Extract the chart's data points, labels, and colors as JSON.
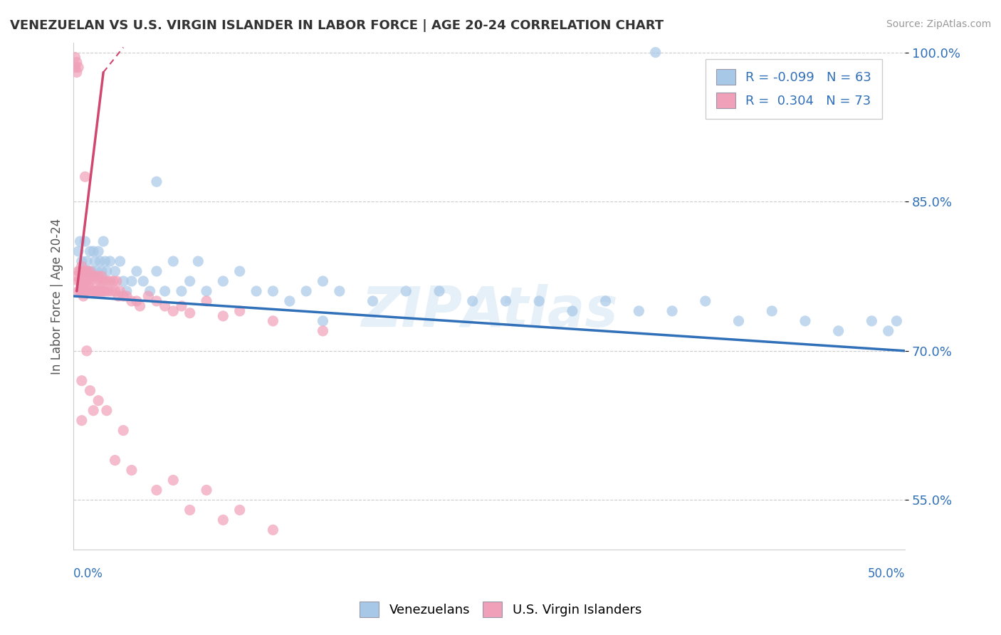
{
  "title": "VENEZUELAN VS U.S. VIRGIN ISLANDER IN LABOR FORCE | AGE 20-24 CORRELATION CHART",
  "source": "Source: ZipAtlas.com",
  "ylabel": "In Labor Force | Age 20-24",
  "xmin": 0.0,
  "xmax": 0.5,
  "ymin": 0.5,
  "ymax": 1.01,
  "yticks": [
    0.55,
    0.7,
    0.85,
    1.0
  ],
  "ytick_labels": [
    "55.0%",
    "70.0%",
    "85.0%",
    "100.0%"
  ],
  "r_blue": -0.099,
  "n_blue": 63,
  "r_pink": 0.304,
  "n_pink": 73,
  "blue_color": "#a8c8e8",
  "pink_color": "#f0a0b8",
  "blue_line_color": "#3070b8",
  "pink_line_color": "#d04870",
  "watermark": "ZIPAtlas",
  "blue_scatter_x": [
    0.003,
    0.004,
    0.005,
    0.006,
    0.007,
    0.008,
    0.009,
    0.01,
    0.011,
    0.012,
    0.013,
    0.014,
    0.015,
    0.016,
    0.017,
    0.018,
    0.019,
    0.02,
    0.022,
    0.025,
    0.028,
    0.03,
    0.032,
    0.035,
    0.038,
    0.042,
    0.046,
    0.05,
    0.055,
    0.06,
    0.065,
    0.07,
    0.075,
    0.08,
    0.09,
    0.1,
    0.11,
    0.12,
    0.13,
    0.14,
    0.15,
    0.16,
    0.18,
    0.2,
    0.22,
    0.24,
    0.26,
    0.28,
    0.3,
    0.32,
    0.34,
    0.36,
    0.38,
    0.4,
    0.42,
    0.44,
    0.46,
    0.48,
    0.49,
    0.495,
    0.05,
    0.15,
    0.35
  ],
  "blue_scatter_y": [
    0.8,
    0.81,
    0.79,
    0.78,
    0.81,
    0.79,
    0.78,
    0.8,
    0.78,
    0.8,
    0.79,
    0.78,
    0.8,
    0.79,
    0.78,
    0.81,
    0.79,
    0.78,
    0.79,
    0.78,
    0.79,
    0.77,
    0.76,
    0.77,
    0.78,
    0.77,
    0.76,
    0.78,
    0.76,
    0.79,
    0.76,
    0.77,
    0.79,
    0.76,
    0.77,
    0.78,
    0.76,
    0.76,
    0.75,
    0.76,
    0.77,
    0.76,
    0.75,
    0.76,
    0.76,
    0.75,
    0.75,
    0.75,
    0.74,
    0.75,
    0.74,
    0.74,
    0.75,
    0.73,
    0.74,
    0.73,
    0.72,
    0.73,
    0.72,
    0.73,
    0.87,
    0.73,
    1.0
  ],
  "pink_scatter_x": [
    0.001,
    0.001,
    0.002,
    0.002,
    0.002,
    0.003,
    0.003,
    0.003,
    0.003,
    0.004,
    0.004,
    0.004,
    0.005,
    0.005,
    0.005,
    0.005,
    0.006,
    0.006,
    0.006,
    0.006,
    0.007,
    0.007,
    0.007,
    0.007,
    0.008,
    0.008,
    0.008,
    0.009,
    0.009,
    0.01,
    0.01,
    0.011,
    0.011,
    0.012,
    0.012,
    0.013,
    0.013,
    0.014,
    0.014,
    0.015,
    0.015,
    0.016,
    0.016,
    0.017,
    0.017,
    0.018,
    0.018,
    0.019,
    0.02,
    0.021,
    0.022,
    0.023,
    0.024,
    0.025,
    0.026,
    0.027,
    0.028,
    0.03,
    0.032,
    0.035,
    0.038,
    0.04,
    0.045,
    0.05,
    0.055,
    0.06,
    0.065,
    0.07,
    0.08,
    0.09,
    0.1,
    0.12,
    0.15
  ],
  "pink_scatter_y": [
    0.995,
    0.985,
    0.99,
    0.98,
    0.775,
    0.985,
    0.78,
    0.77,
    0.76,
    0.78,
    0.77,
    0.76,
    0.785,
    0.775,
    0.77,
    0.76,
    0.78,
    0.775,
    0.76,
    0.755,
    0.875,
    0.78,
    0.77,
    0.76,
    0.78,
    0.77,
    0.76,
    0.775,
    0.765,
    0.78,
    0.77,
    0.775,
    0.76,
    0.775,
    0.76,
    0.775,
    0.76,
    0.77,
    0.76,
    0.775,
    0.76,
    0.77,
    0.76,
    0.775,
    0.76,
    0.77,
    0.76,
    0.76,
    0.77,
    0.76,
    0.77,
    0.76,
    0.77,
    0.76,
    0.77,
    0.755,
    0.76,
    0.755,
    0.755,
    0.75,
    0.75,
    0.745,
    0.755,
    0.75,
    0.745,
    0.74,
    0.745,
    0.738,
    0.75,
    0.735,
    0.74,
    0.73,
    0.72
  ],
  "pink_scatter_extra_x": [
    0.005,
    0.005,
    0.008,
    0.01,
    0.012,
    0.015,
    0.02,
    0.025,
    0.03,
    0.035,
    0.05,
    0.06,
    0.07,
    0.08,
    0.09,
    0.1,
    0.12
  ],
  "pink_scatter_extra_y": [
    0.67,
    0.63,
    0.7,
    0.66,
    0.64,
    0.65,
    0.64,
    0.59,
    0.62,
    0.58,
    0.56,
    0.57,
    0.54,
    0.56,
    0.53,
    0.54,
    0.52
  ]
}
